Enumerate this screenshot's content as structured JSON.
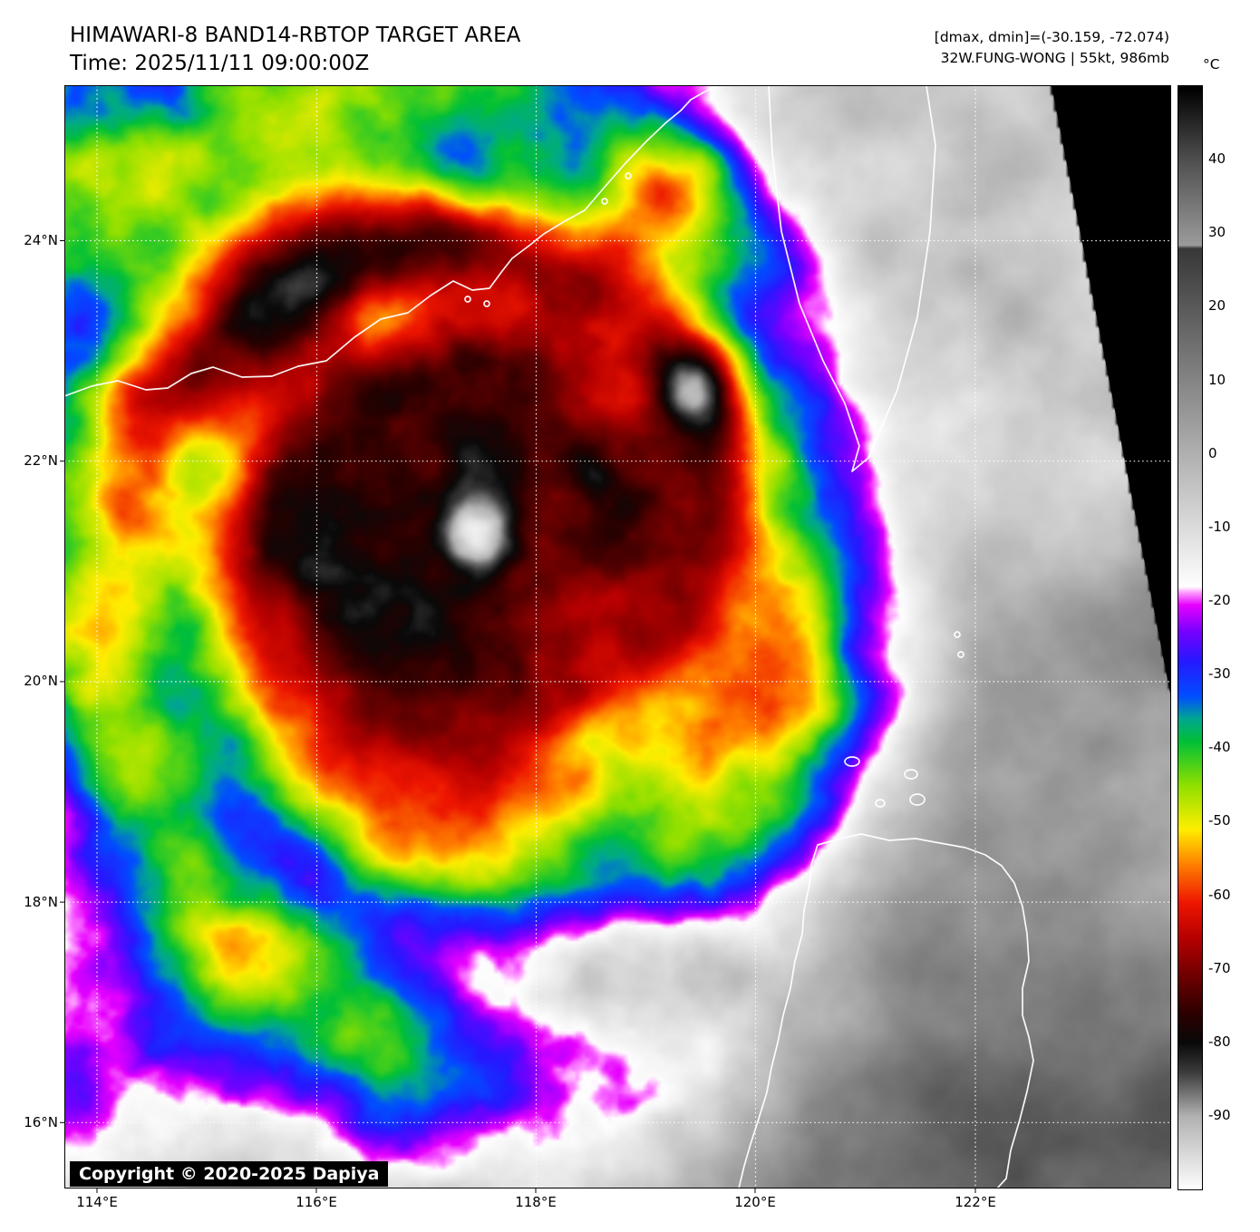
{
  "header": {
    "title": "HIMAWARI-8 BAND14-RBTOP TARGET AREA",
    "time_label": "Time: 2025/11/11 09:00:00Z",
    "dmax_dmin": "[dmax, dmin]=(-30.159, -72.074)",
    "storm_info": "32W.FUNG-WONG | 55kt, 986mb"
  },
  "map": {
    "copyright": "Copyright © 2020-2025 Dapiya",
    "lat_labels": [
      "24°N",
      "22°N",
      "20°N",
      "18°N",
      "16°N"
    ],
    "lon_labels": [
      "114°E",
      "116°E",
      "118°E",
      "120°E",
      "122°E"
    ]
  },
  "colorbar": {
    "unit": "°C",
    "ticks": [
      "40",
      "30",
      "20",
      "10",
      "0",
      "-10",
      "-20",
      "-30",
      "-40",
      "-50",
      "-60",
      "-70",
      "-80",
      "-90"
    ],
    "top_temp": 50,
    "bottom_temp": -100,
    "palette_stops": [
      [
        -100,
        "#ffffff"
      ],
      [
        -90,
        "#b2b2b2"
      ],
      [
        -84,
        "#3c3c3c"
      ],
      [
        -80,
        "#0a0a0a"
      ],
      [
        -76,
        "#2d0000"
      ],
      [
        -71,
        "#6e0000"
      ],
      [
        -66,
        "#b40000"
      ],
      [
        -61,
        "#ee1600"
      ],
      [
        -56,
        "#ff7b00"
      ],
      [
        -51,
        "#ffee00"
      ],
      [
        -45,
        "#90e000"
      ],
      [
        -39,
        "#00c038"
      ],
      [
        -36,
        "#00a890"
      ],
      [
        -33,
        "#0050ff"
      ],
      [
        -28,
        "#2818ff"
      ],
      [
        -24,
        "#7a00ff"
      ],
      [
        -20.5,
        "#e800ff"
      ],
      [
        -18.8,
        "#ff9cff"
      ],
      [
        -18,
        "#ffffff"
      ],
      [
        10,
        "#858585"
      ],
      [
        28,
        "#383838"
      ],
      [
        28.4,
        "#9c9c9c"
      ],
      [
        40,
        "#505050"
      ],
      [
        50,
        "#000000"
      ]
    ]
  }
}
